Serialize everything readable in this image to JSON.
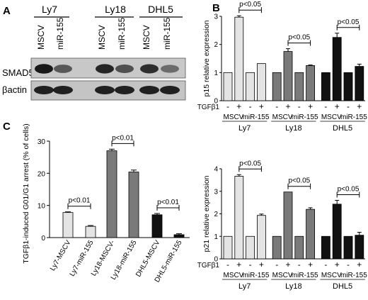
{
  "panels": {
    "a": {
      "letter": "A"
    },
    "b": {
      "letter": "B"
    },
    "c": {
      "letter": "C"
    }
  },
  "blot": {
    "cell_lines": [
      "Ly7",
      "Ly18",
      "DHL5"
    ],
    "lanes": [
      "MSCV",
      "miR-155",
      "MSCV",
      "miR-155",
      "MSCV",
      "miR-155"
    ],
    "rows": [
      "SMAD5",
      "βactin"
    ],
    "smad5_intensity": [
      0.9,
      0.45,
      0.8,
      0.5,
      0.75,
      0.3
    ],
    "actin_intensity": [
      0.85,
      0.85,
      0.85,
      0.85,
      0.85,
      0.85
    ]
  },
  "chart_data": [
    {
      "id": "p15",
      "type": "bar",
      "title": "",
      "ylabel": "p15 relative expression",
      "ylim": [
        0,
        3
      ],
      "yticks": [
        0,
        1,
        2,
        3
      ],
      "treatment_label": "TGFβ1",
      "signs": [
        "-",
        "+",
        "-",
        "+",
        "-",
        "+",
        "-",
        "+",
        "-",
        "+",
        "-",
        "+"
      ],
      "groups": [
        "MSCV",
        "miR-155",
        "MSCV",
        "miR-155",
        "MSCV",
        "miR-155"
      ],
      "cell_lines": [
        "Ly7",
        "Ly18",
        "DHL5"
      ],
      "values": [
        1.0,
        2.97,
        1.0,
        1.32,
        1.0,
        1.75,
        1.0,
        1.25,
        1.0,
        2.25,
        1.0,
        1.22
      ],
      "errors": [
        0,
        0.05,
        0,
        0,
        0,
        0.1,
        0,
        0.02,
        0,
        0.15,
        0,
        0.08
      ],
      "colors": [
        "#e4e4e4",
        "#e4e4e4",
        "#e4e4e4",
        "#e4e4e4",
        "#7a7a7a",
        "#7a7a7a",
        "#7a7a7a",
        "#7a7a7a",
        "#111111",
        "#111111",
        "#111111",
        "#111111"
      ],
      "annotations": [
        "p<0.05",
        "p<0.05",
        "p<0.05"
      ]
    },
    {
      "id": "p21",
      "type": "bar",
      "title": "",
      "ylabel": "p21 relative expression",
      "ylim": [
        0,
        4
      ],
      "yticks": [
        0,
        1,
        2,
        3,
        4
      ],
      "treatment_label": "TGFβ1",
      "signs": [
        "-",
        "+",
        "-",
        "+",
        "-",
        "+",
        "-",
        "+",
        "-",
        "+",
        "-",
        "+"
      ],
      "groups": [
        "MSCV",
        "miR-155",
        "MSCV",
        "miR-155",
        "MSCV",
        "miR-155"
      ],
      "cell_lines": [
        "Ly7",
        "Ly18",
        "DHL5"
      ],
      "values": [
        1.0,
        3.67,
        1.0,
        1.93,
        1.0,
        2.97,
        1.0,
        2.2,
        1.0,
        2.43,
        1.0,
        1.05
      ],
      "errors": [
        0,
        0.07,
        0,
        0.06,
        0,
        0,
        0,
        0.07,
        0,
        0.17,
        0,
        0.13
      ],
      "colors": [
        "#e4e4e4",
        "#e4e4e4",
        "#e4e4e4",
        "#e4e4e4",
        "#7a7a7a",
        "#7a7a7a",
        "#7a7a7a",
        "#7a7a7a",
        "#111111",
        "#111111",
        "#111111",
        "#111111"
      ],
      "annotations": [
        "p<0.05",
        "p<0.05",
        "p<0.05"
      ]
    },
    {
      "id": "arrest",
      "type": "bar",
      "title": "",
      "ylabel": "TGFβ1-induced G01/G1 arrest (% of cells)",
      "ylim": [
        0,
        30
      ],
      "yticks": [
        0,
        10,
        20,
        30
      ],
      "categories": [
        "Ly7-MSCV",
        "Ly7-miR-155",
        "Ly18-MSCV-",
        "Ly18-miR-155",
        "DHL5-MSCV",
        "DHL5-miR-155"
      ],
      "values": [
        7.8,
        3.5,
        27.0,
        20.4,
        7.1,
        0.9
      ],
      "errors": [
        0.2,
        0.25,
        0.5,
        0.6,
        0.4,
        0.3
      ],
      "colors": [
        "#e4e4e4",
        "#e4e4e4",
        "#7a7a7a",
        "#7a7a7a",
        "#111111",
        "#111111"
      ],
      "annotations": [
        "p<0.01",
        "p<0.01",
        "p<0.01"
      ]
    }
  ]
}
